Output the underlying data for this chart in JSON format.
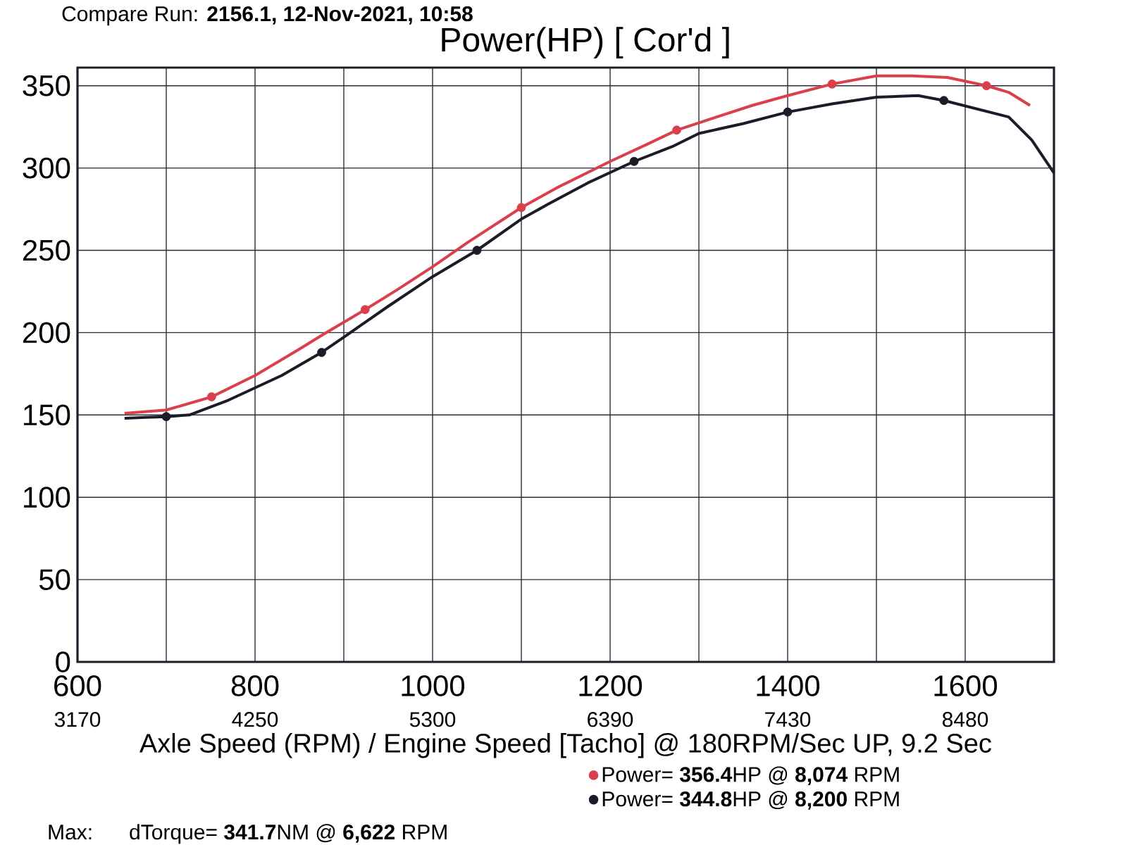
{
  "chart_data": {
    "type": "line",
    "title": "Power(HP) [ Cor'd ]",
    "xlabel": "Axle Speed (RPM) / Engine Speed [Tacho] @ 180RPM/Sec UP, 9.2 Sec",
    "annotations": [
      "Compare Run: **2156.1, 12-Nov-2021, 10:58**",
      "Max:",
      "dTorque= **341.7**NM @ **6,622** RPM",
      "3170",
      "4250",
      "5300",
      "6390",
      "7430",
      "8480"
    ],
    "xlim": [
      600,
      1700
    ],
    "xticks": [
      600,
      {
        "value": 700,
        "label": null
      },
      800,
      {
        "value": 900,
        "label": null
      },
      1000,
      {
        "value": 1100,
        "label": null
      },
      1200,
      {
        "value": 1300,
        "label": null
      },
      1400,
      {
        "value": 1500,
        "label": null
      },
      1600
    ],
    "ylim": [
      0,
      361
    ],
    "yticks": [
      0,
      50,
      100,
      150,
      200,
      250,
      300,
      350
    ],
    "grid": true,
    "legend": "bottom",
    "series": [
      {
        "name": "Power= **356.4**HP @ **8,074** RPM",
        "color": "#d9404c",
        "x": [
          653,
          700,
          751,
          800,
          850,
          877,
          924,
          960,
          1000,
          1040,
          1100,
          1140,
          1200,
          1240,
          1275,
          1320,
          1360,
          1400,
          1450,
          1500,
          1540,
          1580,
          1624,
          1649,
          1673
        ],
        "values": [
          151,
          153,
          161,
          174,
          190,
          199,
          214,
          226,
          240,
          255,
          276,
          288,
          304,
          314,
          323,
          331,
          338,
          344,
          351,
          356,
          356,
          355,
          350,
          346,
          338
        ]
      },
      {
        "name": "Power= **344.8**HP @ **8,200** RPM",
        "color": "#1c1c28",
        "x": [
          653,
          676,
          700,
          726,
          770,
          830,
          875,
          902,
          950,
          1000,
          1050,
          1100,
          1130,
          1175,
          1227,
          1270,
          1300,
          1350,
          1400,
          1450,
          1500,
          1547,
          1576,
          1649,
          1675,
          1700
        ],
        "values": [
          148,
          148.5,
          149,
          150,
          159,
          174,
          188,
          198,
          216,
          234,
          250,
          269,
          278,
          291,
          304,
          313,
          321,
          327,
          334,
          339,
          343,
          344,
          341,
          331,
          317,
          297
        ]
      },
      {
        "type": "scatter",
        "color": "#d9404c",
        "x": [
          751,
          924,
          1100,
          1275,
          1450,
          1624
        ],
        "values": [
          161,
          214,
          276,
          323,
          351,
          350
        ]
      },
      {
        "type": "scatter",
        "color": "#1c1c28",
        "x": [
          700,
          875,
          1050,
          1227,
          1400,
          1576
        ],
        "values": [
          149,
          188,
          250,
          304,
          334,
          341
        ]
      }
    ]
  }
}
